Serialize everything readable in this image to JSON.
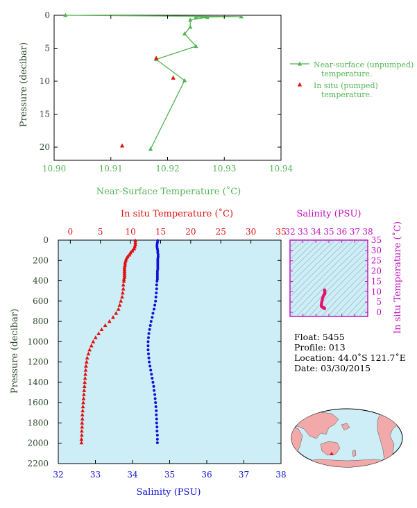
{
  "colors": {
    "green": "#52b552",
    "red": "#e01010",
    "blue": "#1010d8",
    "magenta": "#c010c0",
    "axis_text": "#2e4a2e",
    "plot_bg": "#cdeef7",
    "inset_point": "#e0186e",
    "land": "#f2a9a9",
    "ocean": "#cdeef7"
  },
  "info": {
    "float": "Float:  5455",
    "profile": "Profile:  013",
    "location": "Location:  44.0˚S  121.7˚E",
    "date": "Date:  03/30/2015"
  },
  "tiny_label": "",
  "chart_data": [
    {
      "type": "line",
      "name": "near-surface",
      "xlabel": "Near-Surface Temperature (˚C)",
      "ylabel": "Pressure (decibar)",
      "xlim": [
        10.9,
        10.94
      ],
      "ylim": [
        0,
        22
      ],
      "y_inverted": true,
      "xticks": [
        "10.90",
        "10.91",
        "10.92",
        "10.93",
        "10.94"
      ],
      "yticks": [
        "0",
        "5",
        "10",
        "15",
        "20"
      ],
      "legend_position": "right",
      "series": [
        {
          "name": "Near-surface (unpumped) temperature.",
          "legend_lines": [
            "Near-surface (unpumped)",
            "temperature."
          ],
          "marker": "triangle-line",
          "x": [
            10.902,
            10.933,
            10.925,
            10.927,
            10.924,
            10.924,
            10.923,
            10.925,
            10.918,
            10.923,
            10.917
          ],
          "y": [
            0.0,
            0.2,
            0.3,
            0.3,
            0.7,
            1.8,
            2.8,
            4.7,
            6.7,
            9.9,
            20.3
          ]
        },
        {
          "name": "In situ (pumped) temperature.",
          "legend_lines": [
            "In situ (pumped)",
            "temperature."
          ],
          "marker": "triangle",
          "x": [
            10.918,
            10.921,
            10.912
          ],
          "y": [
            6.5,
            9.5,
            19.8
          ]
        }
      ]
    },
    {
      "type": "line",
      "name": "profile",
      "top_xlabel": "In situ Temperature (˚C)",
      "bottom_xlabel": "Salinity (PSU)",
      "ylabel": "Pressure (decibar)",
      "temperature_xlim": [
        -2,
        35
      ],
      "salinity_xlim": [
        32,
        38
      ],
      "ylim": [
        0,
        2200
      ],
      "y_inverted": true,
      "temperature_ticks": [
        "0",
        "5",
        "10",
        "15",
        "20",
        "25",
        "30",
        "35"
      ],
      "salinity_ticks": [
        "32",
        "33",
        "34",
        "35",
        "36",
        "37",
        "38"
      ],
      "pressure_ticks": [
        "0",
        "200",
        "400",
        "600",
        "800",
        "1000",
        "1200",
        "1400",
        "1600",
        "1800",
        "2000",
        "2200"
      ],
      "temperature": {
        "pressure": [
          5,
          25,
          45,
          65,
          85,
          105,
          125,
          145,
          165,
          185,
          205,
          225,
          245,
          265,
          285,
          305,
          325,
          345,
          365,
          385,
          405,
          440,
          480,
          520,
          560,
          600,
          640,
          680,
          720,
          760,
          800,
          840,
          880,
          920,
          960,
          1000,
          1040,
          1080,
          1120,
          1160,
          1200,
          1240,
          1280,
          1320,
          1360,
          1400,
          1440,
          1480,
          1520,
          1560,
          1600,
          1640,
          1680,
          1720,
          1760,
          1800,
          1840,
          1880,
          1920,
          1960,
          1995
        ],
        "values": [
          10.8,
          10.8,
          10.8,
          10.7,
          10.6,
          10.3,
          10.0,
          9.8,
          9.5,
          9.3,
          9.2,
          9.1,
          9.1,
          9.0,
          9.0,
          9.0,
          9.0,
          9.0,
          9.0,
          8.9,
          8.9,
          8.8,
          8.8,
          8.7,
          8.6,
          8.4,
          8.2,
          8.0,
          7.6,
          7.1,
          6.5,
          5.8,
          5.2,
          4.7,
          4.2,
          3.8,
          3.5,
          3.2,
          3.0,
          2.8,
          2.7,
          2.6,
          2.55,
          2.5,
          2.45,
          2.4,
          2.35,
          2.3,
          2.25,
          2.2,
          2.15,
          2.1,
          2.05,
          2.0,
          2.0,
          1.95,
          1.95,
          1.9,
          1.9,
          1.85,
          1.85
        ]
      },
      "salinity": {
        "pressure": [
          5,
          25,
          45,
          65,
          85,
          105,
          125,
          145,
          165,
          185,
          205,
          225,
          245,
          265,
          285,
          305,
          325,
          345,
          365,
          385,
          405,
          440,
          480,
          520,
          560,
          600,
          640,
          680,
          720,
          760,
          800,
          840,
          880,
          920,
          960,
          1000,
          1040,
          1080,
          1120,
          1160,
          1200,
          1240,
          1280,
          1320,
          1360,
          1400,
          1440,
          1480,
          1520,
          1560,
          1600,
          1640,
          1680,
          1720,
          1760,
          1800,
          1840,
          1880,
          1920,
          1960,
          1995
        ],
        "values": [
          34.68,
          34.67,
          34.66,
          34.66,
          34.67,
          34.68,
          34.68,
          34.69,
          34.69,
          34.68,
          34.68,
          34.68,
          34.68,
          34.68,
          34.68,
          34.67,
          34.67,
          34.67,
          34.67,
          34.67,
          34.66,
          34.65,
          34.65,
          34.64,
          34.63,
          34.62,
          34.6,
          34.58,
          34.55,
          34.53,
          34.5,
          34.48,
          34.46,
          34.44,
          34.43,
          34.42,
          34.42,
          34.42,
          34.43,
          34.44,
          34.45,
          34.47,
          34.49,
          34.51,
          34.53,
          34.55,
          34.57,
          34.58,
          34.6,
          34.61,
          34.62,
          34.63,
          34.64,
          34.64,
          34.65,
          34.65,
          34.66,
          34.66,
          34.67,
          34.67,
          34.67
        ]
      }
    },
    {
      "type": "scatter",
      "name": "ts-diagram",
      "xlabel": "Salinity (PSU)",
      "ylabel": "In situ Temperature (˚C)",
      "xlim": [
        32,
        38
      ],
      "ylim": [
        -2,
        35
      ],
      "xticks": [
        "32",
        "33",
        "34",
        "35",
        "36",
        "37",
        "38"
      ],
      "yticks": [
        "0",
        "5",
        "10",
        "15",
        "20",
        "25",
        "30",
        "35"
      ]
    },
    {
      "type": "map",
      "name": "location-map",
      "float_lon": 121.7,
      "float_lat": -44.0
    }
  ]
}
